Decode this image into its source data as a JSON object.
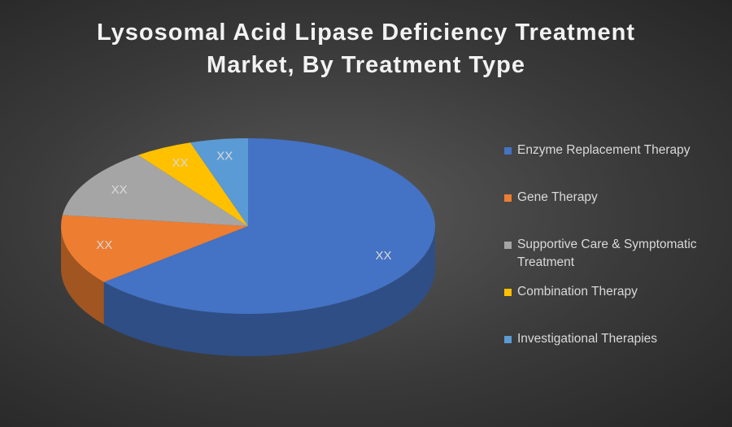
{
  "chart_data": {
    "type": "pie3d",
    "title": "Lysosomal Acid Lipase Deficiency Treatment Market, By Treatment Type",
    "categories": [
      "Enzyme Replacement Therapy",
      "Gene Therapy",
      "Supportive Care & Symptomatic Treatment",
      "Combination Therapy",
      "Investigational Therapies"
    ],
    "values": [
      64,
      13,
      13,
      5,
      5
    ],
    "value_labels": [
      "XX",
      "XX",
      "XX",
      "XX",
      "XX"
    ],
    "colors": [
      "#4472c4",
      "#ed7d31",
      "#a5a5a5",
      "#ffc000",
      "#5b9bd5"
    ],
    "legend": "right"
  }
}
